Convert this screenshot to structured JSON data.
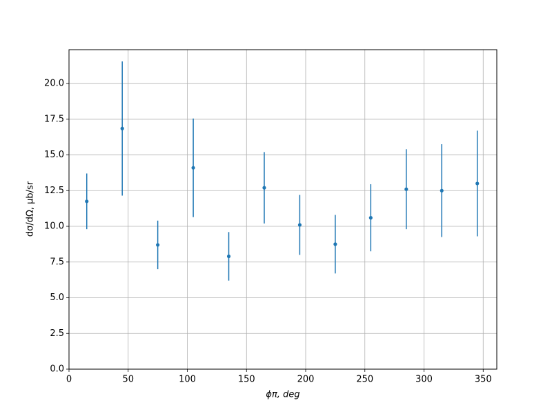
{
  "chart_data": {
    "type": "errorbar",
    "xlabel": "ϕπ, deg",
    "ylabel": "dσ/dΩ, μb/sr",
    "x": [
      15,
      45,
      75,
      105,
      135,
      165,
      195,
      225,
      255,
      285,
      315,
      345
    ],
    "values": [
      11.75,
      16.85,
      8.7,
      14.1,
      7.9,
      12.7,
      10.1,
      8.75,
      10.6,
      12.6,
      12.5,
      13.0
    ],
    "errors": [
      1.95,
      4.7,
      1.7,
      3.45,
      1.7,
      2.5,
      2.1,
      2.05,
      2.35,
      2.8,
      3.25,
      3.7
    ],
    "color": "#1f77b4",
    "xlim": [
      0,
      361.5
    ],
    "ylim": [
      0,
      22.37
    ],
    "xticks": [
      0,
      50,
      100,
      150,
      200,
      250,
      300,
      350
    ],
    "yticks": [
      {
        "value": 0,
        "label": "0.0"
      },
      {
        "value": 2.5,
        "label": "2.5"
      },
      {
        "value": 5,
        "label": "5.0"
      },
      {
        "value": 7.5,
        "label": "7.5"
      },
      {
        "value": 10,
        "label": "10.0"
      },
      {
        "value": 12.5,
        "label": "12.5"
      },
      {
        "value": 15,
        "label": "15.0"
      },
      {
        "value": 17.5,
        "label": "17.5"
      },
      {
        "value": 20,
        "label": "20.0"
      }
    ],
    "grid": true
  }
}
